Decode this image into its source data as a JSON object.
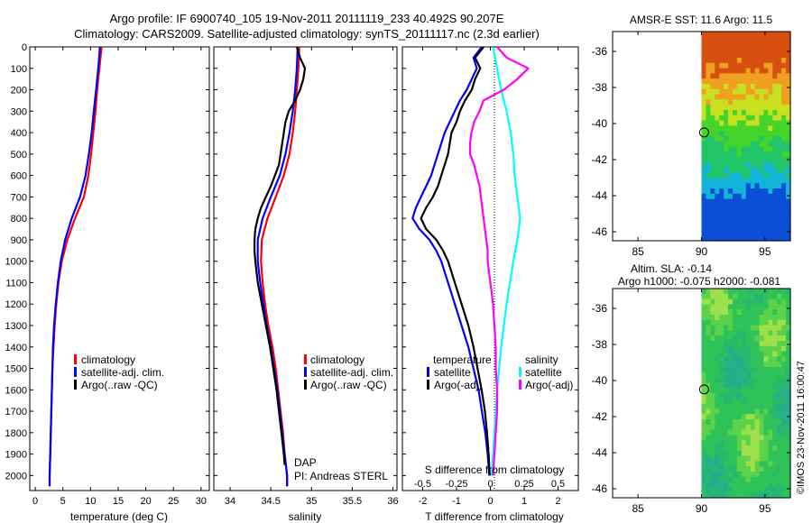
{
  "header": {
    "line1": "Argo profile: IF 6900740_105 19-Nov-2011 20111119_233 40.492S 90.207E",
    "line2": "Climatology: CARS2009. Satellite-adjusted climatology: synTS_20111117.nc (2.3d earlier)"
  },
  "colors": {
    "clim": "#ff0000",
    "sat": "#0000ff",
    "argo": "#000000",
    "sat_s": "#00ffff",
    "argo_s": "#ff00ff"
  },
  "chart_data": [
    {
      "id": "temperature",
      "type": "line",
      "xlabel": "temperature (deg C)",
      "xlim": [
        -1,
        31.5
      ],
      "xticks": [
        0,
        5,
        10,
        15,
        20,
        25,
        30
      ],
      "ylim": [
        0,
        2070
      ],
      "yticks": [
        0,
        100,
        200,
        300,
        400,
        500,
        600,
        700,
        800,
        900,
        1000,
        1100,
        1200,
        1300,
        1400,
        1500,
        1600,
        1700,
        1800,
        1900,
        2000
      ],
      "legend": [
        "climatology",
        "satellite-adj. clim.",
        "Argo(..raw -QC)"
      ],
      "series": [
        {
          "name": "climatology",
          "color": "#ff0000",
          "depth": [
            0,
            100,
            200,
            300,
            400,
            500,
            600,
            700,
            800,
            900,
            1000,
            1100,
            1200,
            1300,
            1400,
            1500,
            1600,
            1700,
            1800,
            1900,
            2000,
            2050
          ],
          "values": [
            12.0,
            11.6,
            11.2,
            10.9,
            10.5,
            10.1,
            9.6,
            8.8,
            7.2,
            5.8,
            4.8,
            4.2,
            3.8,
            3.5,
            3.3,
            3.1,
            3.0,
            2.9,
            2.8,
            2.7,
            2.6,
            2.6
          ]
        },
        {
          "name": "satellite-adj. clim.",
          "color": "#0000ff",
          "depth": [
            0,
            100,
            200,
            300,
            400,
            500,
            600,
            700,
            800,
            900,
            1000,
            1100,
            1200,
            1300,
            1400,
            1500,
            1600,
            1700,
            1800,
            1900,
            2000,
            2050
          ],
          "values": [
            11.7,
            11.4,
            11.0,
            10.6,
            10.2,
            9.7,
            9.1,
            8.1,
            6.6,
            5.4,
            4.6,
            4.1,
            3.7,
            3.4,
            3.2,
            3.1,
            3.0,
            2.9,
            2.8,
            2.7,
            2.6,
            2.6
          ]
        }
      ]
    },
    {
      "id": "salinity",
      "type": "line",
      "xlabel": "salinity",
      "xlim": [
        33.8,
        36.05
      ],
      "xticks": [
        34,
        34.5,
        35,
        35.5,
        36
      ],
      "yticks": [
        0,
        100,
        200,
        300,
        400,
        500,
        600,
        700,
        800,
        900,
        1000,
        1100,
        1200,
        1300,
        1400,
        1500,
        1600,
        1700,
        1800,
        1900,
        2000
      ],
      "legend": [
        "climatology",
        "satellite-adj. clim.",
        "Argo(..raw -QC)"
      ],
      "annotation": [
        "DAP",
        "PI: Andreas STERL"
      ],
      "series": [
        {
          "name": "climatology",
          "color": "#ff0000",
          "depth": [
            0,
            100,
            200,
            300,
            400,
            500,
            600,
            700,
            800,
            900,
            1000,
            1100,
            1200,
            1300,
            1400,
            1500,
            1600,
            1700,
            1800,
            1900,
            2000,
            2050
          ],
          "values": [
            34.85,
            34.84,
            34.82,
            34.8,
            34.77,
            34.73,
            34.66,
            34.56,
            34.46,
            34.39,
            34.38,
            34.4,
            34.43,
            34.47,
            34.52,
            34.56,
            34.59,
            34.62,
            34.65,
            34.67,
            34.7,
            34.7
          ]
        },
        {
          "name": "satellite-adj. clim.",
          "color": "#0000ff",
          "depth": [
            0,
            100,
            200,
            300,
            400,
            500,
            600,
            700,
            800,
            900,
            1000,
            1100,
            1200,
            1300,
            1400,
            1500,
            1600,
            1700,
            1800,
            1900,
            2000,
            2050
          ],
          "values": [
            34.83,
            34.82,
            34.8,
            34.77,
            34.73,
            34.68,
            34.61,
            34.5,
            34.4,
            34.34,
            34.34,
            34.37,
            34.41,
            34.45,
            34.5,
            34.54,
            34.58,
            34.61,
            34.64,
            34.67,
            34.7,
            34.7
          ]
        },
        {
          "name": "Argo(..raw -QC)",
          "color": "#000000",
          "depth": [
            0,
            50,
            100,
            150,
            200,
            250,
            300,
            350,
            400,
            450,
            500,
            550,
            600,
            650,
            700,
            750,
            800,
            850,
            900,
            950,
            1000,
            1100,
            1200,
            1300,
            1400,
            1500,
            1600,
            1700,
            1800,
            1900,
            1950
          ],
          "values": [
            34.82,
            34.86,
            34.92,
            34.9,
            34.86,
            34.8,
            34.72,
            34.68,
            34.66,
            34.64,
            34.62,
            34.6,
            34.55,
            34.5,
            34.44,
            34.38,
            34.34,
            34.31,
            34.3,
            34.3,
            34.31,
            34.34,
            34.39,
            34.44,
            34.49,
            34.53,
            34.57,
            34.6,
            34.63,
            34.66,
            34.67
          ]
        }
      ]
    },
    {
      "id": "difference",
      "type": "line",
      "xlabel": "T difference from climatology",
      "xlabel_top": "S difference from climatology",
      "xlim": [
        -2.6,
        2.6
      ],
      "xticks": [
        -2,
        -1,
        0,
        1,
        2
      ],
      "xticks_s": [
        "-0.5",
        "-0.25",
        "0",
        "0.25",
        "0.5"
      ],
      "legend_t_title": "temperature",
      "legend_s_title": "salinity",
      "legend": [
        "satellite",
        "Argo(-adj)",
        "satellite",
        "Argo(-adj)"
      ],
      "series": [
        {
          "name": "T satellite",
          "color": "#0000ff",
          "depth": [
            0,
            50,
            100,
            150,
            200,
            250,
            300,
            350,
            400,
            450,
            500,
            550,
            600,
            650,
            700,
            750,
            800,
            850,
            900,
            950,
            1000,
            1100,
            1200,
            1300,
            1400,
            1500,
            1600,
            1700,
            1800,
            1900,
            2000
          ],
          "values": [
            -0.25,
            -0.5,
            -0.4,
            -0.55,
            -0.7,
            -0.9,
            -1.05,
            -1.2,
            -1.35,
            -1.45,
            -1.55,
            -1.65,
            -1.75,
            -1.9,
            -2.05,
            -2.2,
            -2.3,
            -2.1,
            -1.8,
            -1.6,
            -1.45,
            -1.25,
            -1.05,
            -0.85,
            -0.65,
            -0.5,
            -0.35,
            -0.25,
            -0.15,
            -0.08,
            -0.03
          ]
        },
        {
          "name": "T Argo(-adj)",
          "color": "#000000",
          "depth": [
            0,
            50,
            100,
            150,
            200,
            250,
            300,
            350,
            400,
            450,
            500,
            550,
            600,
            650,
            700,
            750,
            800,
            850,
            900,
            950,
            1000,
            1100,
            1200,
            1300,
            1400,
            1500,
            1600,
            1700,
            1800,
            1900,
            2000
          ],
          "values": [
            -0.2,
            -0.45,
            -0.3,
            -0.45,
            -0.55,
            -0.75,
            -0.9,
            -1.0,
            -1.15,
            -1.2,
            -1.25,
            -1.35,
            -1.45,
            -1.55,
            -1.7,
            -1.9,
            -2.05,
            -1.9,
            -1.6,
            -1.4,
            -1.25,
            -1.05,
            -0.85,
            -0.65,
            -0.5,
            -0.38,
            -0.26,
            -0.16,
            -0.1,
            -0.05,
            -0.02
          ]
        },
        {
          "name": "S satellite",
          "color": "#00ffff",
          "depth": [
            0,
            100,
            200,
            300,
            400,
            500,
            600,
            700,
            800,
            900,
            1000,
            1200,
            1400,
            1600,
            1800,
            2000
          ],
          "values": [
            0.02,
            0.05,
            0.08,
            0.12,
            0.15,
            0.17,
            0.18,
            0.2,
            0.22,
            0.2,
            0.17,
            0.12,
            0.08,
            0.05,
            0.03,
            0.01
          ]
        },
        {
          "name": "S Argo(-adj)",
          "color": "#ff00ff",
          "depth": [
            0,
            50,
            100,
            150,
            200,
            250,
            300,
            350,
            400,
            450,
            500,
            550,
            600,
            650,
            700,
            750,
            800,
            850,
            900,
            950,
            1000,
            1100,
            1200,
            1300,
            1400,
            1500,
            1600,
            1700,
            1800,
            1900,
            2000
          ],
          "values": [
            0.05,
            0.12,
            0.28,
            0.2,
            0.1,
            -0.05,
            -0.08,
            -0.12,
            -0.14,
            -0.15,
            -0.15,
            -0.12,
            -0.1,
            -0.08,
            -0.07,
            -0.06,
            -0.05,
            -0.04,
            -0.03,
            -0.02,
            -0.02,
            0.0,
            0.02,
            0.03,
            0.04,
            0.04,
            0.05,
            0.05,
            0.04,
            0.03,
            0.02
          ]
        }
      ]
    },
    {
      "id": "sst_map",
      "type": "heatmap",
      "title": "AMSR-E SST: 11.6 Argo: 11.5",
      "xlim": [
        83,
        97
      ],
      "ylim": [
        -46.5,
        -34.9
      ],
      "xticks": [
        85,
        90,
        95
      ],
      "yticks": [
        -36,
        -38,
        -40,
        -42,
        -44,
        -46
      ],
      "data_xrange": [
        90,
        97
      ],
      "argo_point": [
        90.207,
        -40.492
      ]
    },
    {
      "id": "sla_map",
      "type": "heatmap",
      "title": "Altim. SLA: -0.14",
      "subtitle": "Argo h1000: -0.075 h2000: -0.081",
      "xlim": [
        83,
        97
      ],
      "ylim": [
        -46.5,
        -34.9
      ],
      "xticks": [
        85,
        90,
        95
      ],
      "yticks": [
        -36,
        -38,
        -40,
        -42,
        -44,
        -46
      ],
      "data_xrange": [
        90,
        97
      ],
      "argo_point": [
        90.207,
        -40.492
      ]
    }
  ],
  "footer": {
    "credit": "©IMOS 23-Nov-2011 16:00:47"
  }
}
